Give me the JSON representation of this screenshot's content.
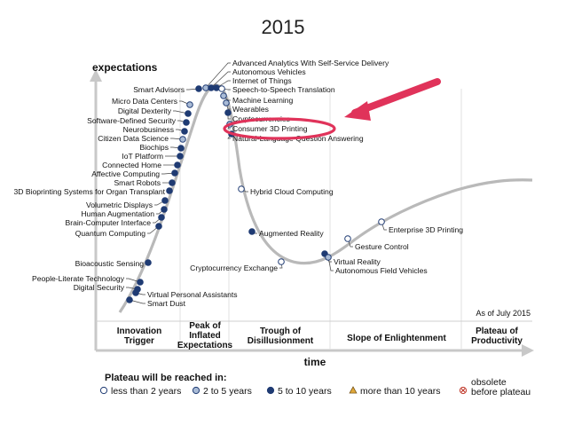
{
  "year": "2015",
  "axes": {
    "y_label": "expectations",
    "x_label": "time",
    "as_of": "As of July 2015"
  },
  "phases": [
    {
      "id": "innovation",
      "lines": [
        "Innovation",
        "Trigger"
      ]
    },
    {
      "id": "peak",
      "lines": [
        "Peak of",
        "Inflated",
        "Expectations"
      ]
    },
    {
      "id": "trough",
      "lines": [
        "Trough of",
        "Disillusionment"
      ]
    },
    {
      "id": "slope",
      "lines": [
        "Slope of Enlightenment"
      ]
    },
    {
      "id": "plateau",
      "lines": [
        "Plateau of",
        "Productivity"
      ]
    }
  ],
  "legend": {
    "title": "Plateau will be reached in:",
    "items": [
      {
        "id": "lt2",
        "marker": "circle-open",
        "label": "less than 2 years"
      },
      {
        "id": "2to5",
        "marker": "circle-light",
        "label": "2 to 5 years"
      },
      {
        "id": "5to10",
        "marker": "circle-dark",
        "label": "5 to 10 years"
      },
      {
        "id": "gt10",
        "marker": "triangle",
        "label": "more than 10 years"
      },
      {
        "id": "obsolete",
        "marker": "x-circle",
        "label_lines": [
          "obsolete",
          "before plateau"
        ]
      }
    ]
  },
  "colors": {
    "curve": "#b9b9b9",
    "dark": "#1f3b73",
    "light": "#a9bbd6",
    "triangle": "#e0a83a",
    "highlight": "#e0335a"
  },
  "highlight_label": "Consumer 3D Printing",
  "technologies": [
    {
      "name": "Advanced Analytics With Self-Service Delivery",
      "category": "2to5"
    },
    {
      "name": "Autonomous Vehicles",
      "category": "5to10"
    },
    {
      "name": "Internet of Things",
      "category": "5to10"
    },
    {
      "name": "Speech-to-Speech Translation",
      "category": "lt2"
    },
    {
      "name": "Machine Learning",
      "category": "2to5"
    },
    {
      "name": "Wearables",
      "category": "2to5"
    },
    {
      "name": "Cryptocurrencies",
      "category": "5to10"
    },
    {
      "name": "Consumer 3D Printing",
      "category": "2to5"
    },
    {
      "name": "Natural-Language Question Answering",
      "category": "5to10"
    },
    {
      "name": "Smart Advisors",
      "category": "5to10"
    },
    {
      "name": "Micro Data Centers",
      "category": "2to5"
    },
    {
      "name": "Digital Dexterity",
      "category": "5to10"
    },
    {
      "name": "Software-Defined Security",
      "category": "5to10"
    },
    {
      "name": "Neurobusiness",
      "category": "gt10"
    },
    {
      "name": "Citizen Data Science",
      "category": "2to5"
    },
    {
      "name": "Biochips",
      "category": "5to10"
    },
    {
      "name": "IoT Platform",
      "category": "5to10"
    },
    {
      "name": "Connected Home",
      "category": "5to10"
    },
    {
      "name": "Affective Computing",
      "category": "5to10"
    },
    {
      "name": "Smart Robots",
      "category": "5to10"
    },
    {
      "name": "3D Bioprinting Systems for Organ Transplant",
      "category": "5to10"
    },
    {
      "name": "Volumetric Displays",
      "category": "gt10"
    },
    {
      "name": "Human Augmentation",
      "category": "gt10"
    },
    {
      "name": "Brain-Computer Interface",
      "category": "gt10"
    },
    {
      "name": "Quantum Computing",
      "category": "gt10"
    },
    {
      "name": "Bioacoustic Sensing",
      "category": "gt10"
    },
    {
      "name": "People-Literate Technology",
      "category": "5to10"
    },
    {
      "name": "Digital Security",
      "category": "5to10"
    },
    {
      "name": "Virtual Personal Assistants",
      "category": "5to10"
    },
    {
      "name": "Smart Dust",
      "category": "gt10"
    },
    {
      "name": "Hybrid Cloud Computing",
      "category": "lt2"
    },
    {
      "name": "Augmented Reality",
      "category": "5to10"
    },
    {
      "name": "Cryptocurrency Exchange",
      "category": "lt2"
    },
    {
      "name": "Virtual Reality",
      "category": "5to10"
    },
    {
      "name": "Autonomous Field Vehicles",
      "category": "2to5"
    },
    {
      "name": "Gesture Control",
      "category": "lt2"
    },
    {
      "name": "Enterprise 3D Printing",
      "category": "lt2"
    }
  ]
}
